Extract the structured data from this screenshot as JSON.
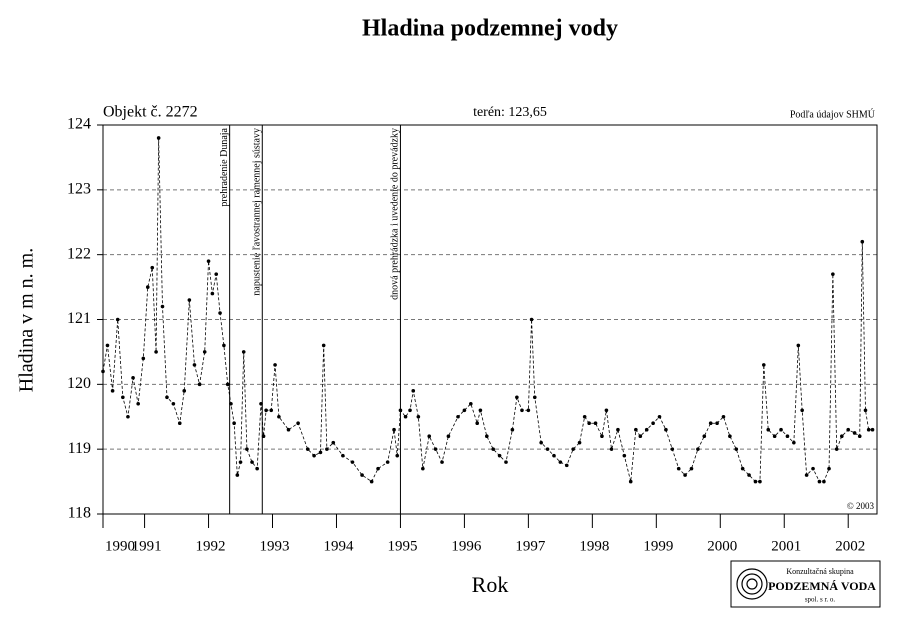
{
  "chart_data": {
    "type": "line",
    "title": "Hladina podzemnej vody",
    "object_label": "Objekt č. 2272",
    "terrain_label": "terén: 123,65",
    "source": "Podľa údajov SHMÚ",
    "copyright": "© 2003",
    "x_label": "Rok",
    "y_label": "Hladina v m n. m.",
    "xlim": [
      1990.35,
      2002.45
    ],
    "xticks": [
      {
        "value": 1990.35,
        "label": "1990"
      },
      1991,
      1992,
      1993,
      1994,
      1995,
      1996,
      1997,
      1998,
      1999,
      2000,
      2001,
      2002
    ],
    "ylim": [
      118,
      124
    ],
    "yticks": [
      118,
      119,
      120,
      121,
      122,
      123,
      124
    ],
    "grid": true,
    "annotations": [
      {
        "x": 1992.33,
        "text": "prehradenie Dunaja"
      },
      {
        "x": 1992.84,
        "text": "napustenie ľavostrannej ramennej sústavy"
      },
      {
        "x": 1995.0,
        "text": "dnová prehrádzka i uvedenie do prevádzky"
      }
    ],
    "x": [
      1990.35,
      1990.42,
      1990.5,
      1990.58,
      1990.66,
      1990.74,
      1990.82,
      1990.9,
      1990.98,
      1991.05,
      1991.12,
      1991.18,
      1991.22,
      1991.28,
      1991.35,
      1991.45,
      1991.55,
      1991.62,
      1991.7,
      1991.78,
      1991.86,
      1991.94,
      1992.0,
      1992.06,
      1992.12,
      1992.18,
      1992.24,
      1992.3,
      1992.35,
      1992.4,
      1992.45,
      1992.5,
      1992.55,
      1992.6,
      1992.68,
      1992.76,
      1992.82,
      1992.86,
      1992.9,
      1992.98,
      1993.04,
      1993.1,
      1993.25,
      1993.4,
      1993.55,
      1993.65,
      1993.75,
      1993.8,
      1993.85,
      1993.95,
      1994.1,
      1994.25,
      1994.4,
      1994.55,
      1994.65,
      1994.8,
      1994.9,
      1994.95,
      1995.0,
      1995.08,
      1995.15,
      1995.2,
      1995.28,
      1995.35,
      1995.45,
      1995.55,
      1995.65,
      1995.75,
      1995.9,
      1996.0,
      1996.1,
      1996.2,
      1996.25,
      1996.35,
      1996.45,
      1996.55,
      1996.65,
      1996.75,
      1996.82,
      1996.9,
      1997.0,
      1997.05,
      1997.1,
      1997.2,
      1997.3,
      1997.4,
      1997.5,
      1997.6,
      1997.7,
      1997.8,
      1997.88,
      1997.95,
      1998.05,
      1998.15,
      1998.22,
      1998.3,
      1998.4,
      1998.5,
      1998.6,
      1998.68,
      1998.75,
      1998.85,
      1998.95,
      1999.05,
      1999.15,
      1999.25,
      1999.35,
      1999.45,
      1999.55,
      1999.65,
      1999.75,
      1999.85,
      1999.95,
      2000.05,
      2000.15,
      2000.25,
      2000.35,
      2000.45,
      2000.55,
      2000.62,
      2000.68,
      2000.75,
      2000.85,
      2000.95,
      2001.05,
      2001.15,
      2001.22,
      2001.28,
      2001.35,
      2001.45,
      2001.55,
      2001.62,
      2001.7,
      2001.76,
      2001.82,
      2001.9,
      2002.0,
      2002.1,
      2002.18,
      2002.22,
      2002.27,
      2002.32,
      2002.38
    ],
    "series": [
      {
        "color": "#000000",
        "values": [
          120.2,
          120.6,
          119.9,
          121.0,
          119.8,
          119.5,
          120.1,
          119.7,
          120.4,
          121.5,
          121.8,
          120.5,
          123.8,
          121.2,
          119.8,
          119.7,
          119.4,
          119.9,
          121.3,
          120.3,
          120.0,
          120.5,
          121.9,
          121.4,
          121.7,
          121.1,
          120.6,
          120.0,
          119.7,
          119.4,
          118.6,
          118.8,
          120.5,
          119.0,
          118.8,
          118.7,
          119.7,
          119.2,
          119.6,
          119.6,
          120.3,
          119.5,
          119.3,
          119.4,
          119.0,
          118.9,
          118.95,
          120.6,
          119.0,
          119.1,
          118.9,
          118.8,
          118.6,
          118.5,
          118.7,
          118.8,
          119.3,
          118.9,
          119.6,
          119.5,
          119.6,
          119.9,
          119.5,
          118.7,
          119.2,
          119.0,
          118.8,
          119.2,
          119.5,
          119.6,
          119.7,
          119.4,
          119.6,
          119.2,
          119.0,
          118.9,
          118.8,
          119.3,
          119.8,
          119.6,
          119.6,
          121.0,
          119.8,
          119.1,
          119.0,
          118.9,
          118.8,
          118.75,
          119.0,
          119.1,
          119.5,
          119.4,
          119.4,
          119.2,
          119.6,
          119.0,
          119.3,
          118.9,
          118.5,
          119.3,
          119.2,
          119.3,
          119.4,
          119.5,
          119.3,
          119.0,
          118.7,
          118.6,
          118.7,
          119.0,
          119.2,
          119.4,
          119.4,
          119.5,
          119.2,
          119.0,
          118.7,
          118.6,
          118.5,
          118.5,
          120.3,
          119.3,
          119.2,
          119.3,
          119.2,
          119.1,
          120.6,
          119.6,
          118.6,
          118.7,
          118.5,
          118.5,
          118.7,
          121.7,
          119.0,
          119.2,
          119.3,
          119.25,
          119.2,
          122.2,
          119.6,
          119.3,
          119.3
        ]
      }
    ]
  },
  "logo": {
    "line1": "Konzultačná skupina",
    "line2": "PODZEMNÁ VODA",
    "line3": "spol. s r. o."
  }
}
